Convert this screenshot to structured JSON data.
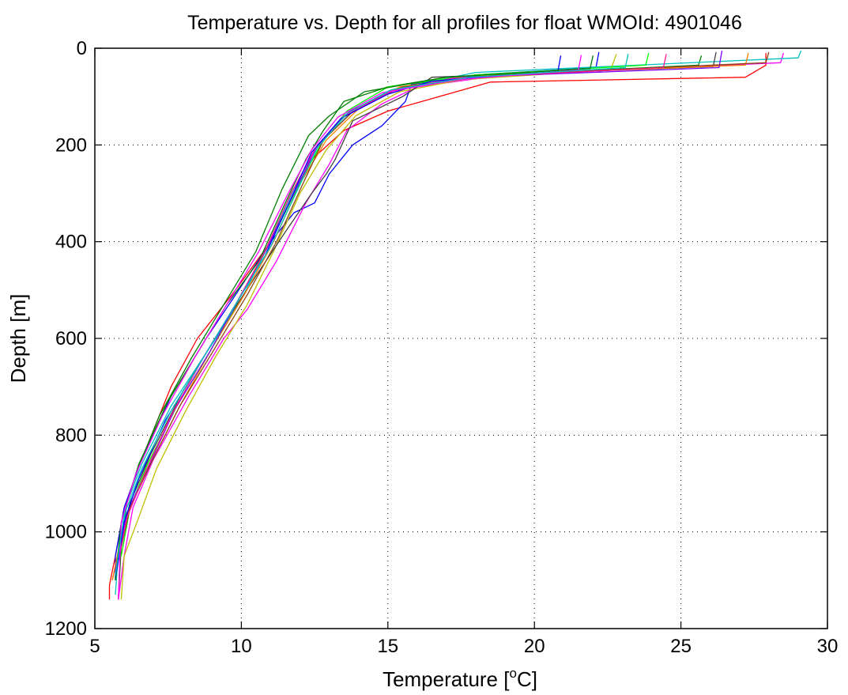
{
  "chart_data": {
    "type": "line",
    "title": "Temperature vs. Depth for all profiles for float WMOId: 4901046",
    "xlabel_main": "Temperature [",
    "xlabel_sup": "o",
    "xlabel_tail": "C]",
    "ylabel": "Depth [m]",
    "xlim": [
      5,
      30
    ],
    "ylim": [
      0,
      1200
    ],
    "y_reversed": true,
    "grid": true,
    "x_ticks": [
      5,
      10,
      15,
      20,
      25,
      30
    ],
    "y_ticks": [
      0,
      200,
      400,
      600,
      800,
      1000,
      1200
    ],
    "colors": [
      "#ff0000",
      "#0000ff",
      "#008000",
      "#ff00ff",
      "#00bfbf",
      "#bfbf00",
      "#404040",
      "#ff8000",
      "#00ff00",
      "#8000ff",
      "#8b4513",
      "#ff1493"
    ],
    "series": [
      {
        "color": "#ff0000",
        "x": [
          27.9,
          27.9,
          27.2,
          18.5,
          15.0,
          13.5,
          12.4,
          11.8,
          11.0,
          9.8,
          8.5,
          7.6,
          6.6,
          6.0,
          5.7,
          5.5,
          5.5
        ],
        "y": [
          10,
          35,
          60,
          70,
          130,
          170,
          230,
          300,
          400,
          500,
          600,
          700,
          850,
          950,
          1050,
          1110,
          1140
        ]
      },
      {
        "color": "#0000ff",
        "x": [
          22.2,
          22.1,
          18.0,
          15.8,
          15.6,
          14.8,
          13.8,
          13.0,
          12.5,
          11.8,
          11.0,
          9.8,
          8.8,
          7.6,
          6.6,
          6.0,
          5.7,
          5.7
        ],
        "y": [
          8,
          40,
          55,
          75,
          110,
          160,
          200,
          260,
          320,
          340,
          400,
          510,
          600,
          720,
          850,
          950,
          1050,
          1100
        ]
      },
      {
        "color": "#008000",
        "x": [
          25.7,
          25.6,
          17.0,
          15.0,
          13.5,
          12.8,
          12.2,
          11.5,
          10.6,
          9.5,
          8.6,
          7.5,
          6.5,
          6.1,
          5.9,
          5.8
        ],
        "y": [
          15,
          35,
          60,
          80,
          110,
          170,
          230,
          320,
          440,
          530,
          620,
          730,
          860,
          940,
          1030,
          1140
        ]
      },
      {
        "color": "#ff00ff",
        "x": [
          28.5,
          28.4,
          19.0,
          16.0,
          14.8,
          13.6,
          13.0,
          12.2,
          11.2,
          10.2,
          9.4,
          8.2,
          7.0,
          6.3,
          6.0,
          5.8
        ],
        "y": [
          10,
          30,
          55,
          80,
          115,
          170,
          240,
          320,
          440,
          540,
          600,
          720,
          850,
          950,
          1050,
          1140
        ]
      },
      {
        "color": "#00bfbf",
        "x": [
          29.1,
          29.0,
          18.0,
          15.2,
          13.8,
          12.6,
          11.8,
          10.9,
          10.0,
          8.8,
          7.6,
          6.6,
          6.1,
          5.8,
          5.7
        ],
        "y": [
          5,
          20,
          50,
          85,
          130,
          200,
          290,
          410,
          520,
          630,
          740,
          860,
          940,
          1040,
          1130
        ]
      },
      {
        "color": "#bfbf00",
        "x": [
          22.8,
          22.6,
          17.5,
          15.4,
          13.9,
          12.9,
          12.0,
          11.1,
          10.2,
          9.1,
          8.1,
          7.1,
          6.5,
          6.0,
          5.9
        ],
        "y": [
          12,
          45,
          65,
          90,
          140,
          210,
          300,
          420,
          530,
          640,
          750,
          870,
          970,
          1050,
          1140
        ]
      },
      {
        "color": "#404040",
        "x": [
          26.2,
          26.1,
          16.5,
          15.5,
          13.8,
          13.2,
          12.9,
          12.4,
          11.5,
          10.4,
          9.2,
          8.0,
          6.9,
          6.2,
          5.8,
          5.6
        ],
        "y": [
          8,
          38,
          60,
          100,
          150,
          230,
          260,
          300,
          380,
          480,
          590,
          710,
          840,
          940,
          1040,
          1100
        ]
      },
      {
        "color": "#ff8000",
        "x": [
          27.3,
          27.2,
          18.5,
          15.4,
          14.0,
          12.9,
          12.0,
          11.1,
          10.1,
          9.0,
          7.9,
          6.9,
          6.2,
          5.8,
          5.6
        ],
        "y": [
          10,
          35,
          55,
          80,
          125,
          190,
          280,
          400,
          510,
          620,
          740,
          860,
          950,
          1040,
          1100
        ]
      },
      {
        "color": "#00ff00",
        "x": [
          23.9,
          23.8,
          18.0,
          15.0,
          13.6,
          12.7,
          11.9,
          11.0,
          10.0,
          9.0,
          7.8,
          6.8,
          6.2,
          5.9
        ],
        "y": [
          10,
          35,
          55,
          80,
          130,
          200,
          290,
          400,
          510,
          620,
          740,
          860,
          950,
          1050
        ]
      },
      {
        "color": "#8000ff",
        "x": [
          26.4,
          26.3,
          17.6,
          15.3,
          13.7,
          12.6,
          11.8,
          10.9,
          9.9,
          8.9,
          7.7,
          6.8,
          6.1,
          5.7
        ],
        "y": [
          5,
          40,
          60,
          85,
          130,
          200,
          300,
          410,
          520,
          630,
          750,
          870,
          960,
          1080
        ]
      },
      {
        "color": "#8b4513",
        "x": [
          28.0,
          27.9,
          18.8,
          15.5,
          13.9,
          12.8,
          12.1,
          11.2,
          10.2,
          9.1,
          7.9,
          6.9,
          6.2,
          5.8
        ],
        "y": [
          8,
          30,
          55,
          80,
          125,
          190,
          280,
          400,
          510,
          620,
          740,
          860,
          950,
          1060
        ]
      },
      {
        "color": "#ff1493",
        "x": [
          24.5,
          24.4,
          17.2,
          15.1,
          13.5,
          12.5,
          11.7,
          10.8,
          9.8,
          8.7,
          7.6,
          6.7,
          6.1,
          5.7
        ],
        "y": [
          12,
          40,
          62,
          90,
          140,
          210,
          300,
          420,
          530,
          640,
          760,
          880,
          970,
          1090
        ]
      },
      {
        "color": "#0000ff",
        "x": [
          20.9,
          20.8,
          16.5,
          15.0,
          13.4,
          12.4,
          11.7,
          10.8,
          9.7,
          8.6,
          7.4,
          6.5,
          6.0,
          5.7
        ],
        "y": [
          15,
          48,
          68,
          95,
          145,
          215,
          310,
          430,
          540,
          650,
          770,
          890,
          980,
          1100
        ]
      },
      {
        "color": "#008000",
        "x": [
          22.0,
          21.9,
          17.0,
          14.2,
          13.0,
          12.3,
          11.4,
          10.5,
          9.4,
          8.3,
          7.2,
          6.4,
          5.9,
          5.7
        ],
        "y": [
          15,
          42,
          60,
          90,
          140,
          180,
          290,
          420,
          530,
          640,
          760,
          880,
          980,
          1100
        ]
      },
      {
        "color": "#ff00ff",
        "x": [
          21.6,
          21.5,
          17.4,
          14.8,
          13.3,
          12.4,
          11.6,
          10.6,
          9.5,
          8.4,
          7.3,
          6.4,
          5.9,
          5.8
        ],
        "y": [
          14,
          45,
          65,
          92,
          142,
          210,
          300,
          420,
          530,
          640,
          760,
          880,
          980,
          1140
        ]
      },
      {
        "color": "#00bfbf",
        "x": [
          23.2,
          23.1,
          17.8,
          15.1,
          13.6,
          12.6,
          11.9,
          11.0,
          9.9,
          8.8,
          7.6,
          6.6,
          6.0,
          5.7
        ],
        "y": [
          12,
          40,
          60,
          86,
          135,
          205,
          295,
          410,
          520,
          630,
          750,
          870,
          965,
          1090
        ]
      }
    ]
  }
}
